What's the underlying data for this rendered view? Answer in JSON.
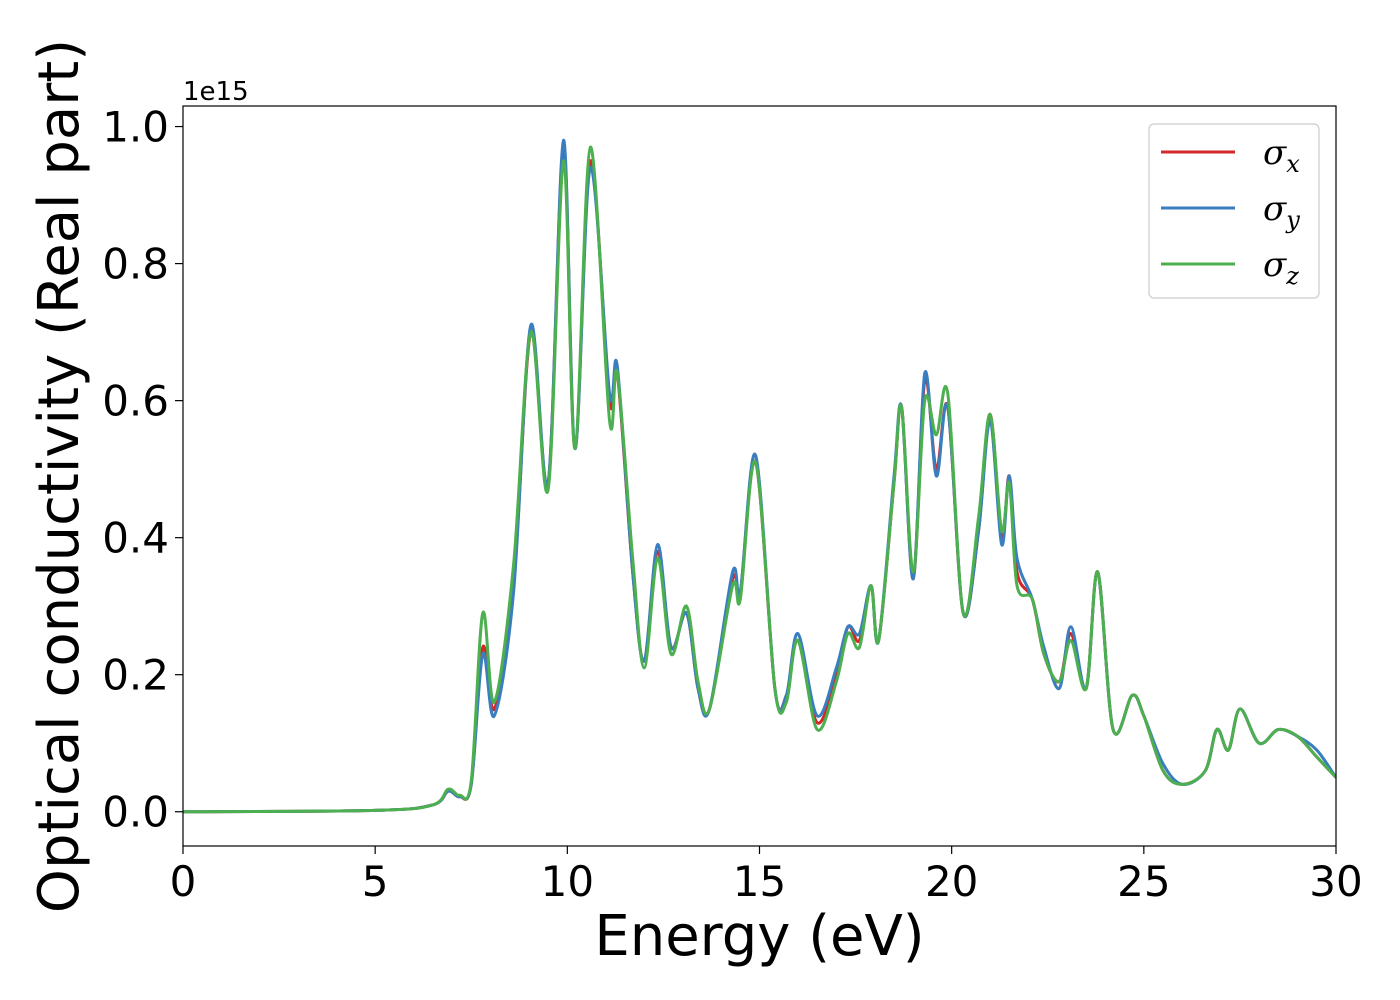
{
  "chart_data": {
    "type": "line",
    "title": "",
    "xlabel": "Energy (eV)",
    "ylabel": "Optical conductivity (Real part)",
    "y_offset_label": "1e15",
    "xlim": [
      0,
      30
    ],
    "ylim": [
      -0.05,
      1.03
    ],
    "xticks": [
      0,
      5,
      10,
      15,
      20,
      25,
      30
    ],
    "xtick_labels": [
      "0",
      "5",
      "10",
      "15",
      "20",
      "25",
      "30"
    ],
    "yticks": [
      0.0,
      0.2,
      0.4,
      0.6,
      0.8,
      1.0
    ],
    "ytick_labels": [
      "0.0",
      "0.2",
      "0.4",
      "0.6",
      "0.8",
      "1.0"
    ],
    "grid": false,
    "legend_position": "top-right",
    "series": [
      {
        "name": "σx",
        "legend_base": "σ",
        "legend_sub": "x",
        "color": "#d62728",
        "points": [
          [
            0,
            0
          ],
          [
            5,
            0.002
          ],
          [
            6.5,
            0.01
          ],
          [
            6.9,
            0.03
          ],
          [
            7.2,
            0.022
          ],
          [
            7.5,
            0.04
          ],
          [
            7.8,
            0.24
          ],
          [
            8.1,
            0.15
          ],
          [
            8.6,
            0.33
          ],
          [
            9.05,
            0.7
          ],
          [
            9.5,
            0.48
          ],
          [
            9.9,
            0.97
          ],
          [
            10.2,
            0.53
          ],
          [
            10.6,
            0.95
          ],
          [
            11.1,
            0.6
          ],
          [
            11.3,
            0.64
          ],
          [
            11.7,
            0.35
          ],
          [
            12.0,
            0.22
          ],
          [
            12.35,
            0.38
          ],
          [
            12.7,
            0.24
          ],
          [
            13.1,
            0.29
          ],
          [
            13.4,
            0.18
          ],
          [
            13.7,
            0.15
          ],
          [
            14.3,
            0.34
          ],
          [
            14.5,
            0.32
          ],
          [
            14.9,
            0.51
          ],
          [
            15.4,
            0.18
          ],
          [
            15.7,
            0.17
          ],
          [
            16.0,
            0.25
          ],
          [
            16.5,
            0.13
          ],
          [
            17.0,
            0.2
          ],
          [
            17.3,
            0.27
          ],
          [
            17.6,
            0.25
          ],
          [
            17.9,
            0.33
          ],
          [
            18.1,
            0.25
          ],
          [
            18.5,
            0.48
          ],
          [
            18.7,
            0.59
          ],
          [
            19.0,
            0.34
          ],
          [
            19.3,
            0.63
          ],
          [
            19.6,
            0.5
          ],
          [
            19.9,
            0.59
          ],
          [
            20.3,
            0.29
          ],
          [
            20.7,
            0.41
          ],
          [
            21.0,
            0.58
          ],
          [
            21.3,
            0.4
          ],
          [
            21.5,
            0.49
          ],
          [
            21.7,
            0.35
          ],
          [
            22.1,
            0.31
          ],
          [
            22.4,
            0.23
          ],
          [
            22.8,
            0.19
          ],
          [
            23.1,
            0.26
          ],
          [
            23.5,
            0.18
          ],
          [
            23.8,
            0.35
          ],
          [
            24.2,
            0.12
          ],
          [
            24.7,
            0.17
          ],
          [
            25.0,
            0.14
          ],
          [
            25.5,
            0.06
          ],
          [
            26.0,
            0.04
          ],
          [
            26.6,
            0.06
          ],
          [
            26.9,
            0.12
          ],
          [
            27.2,
            0.09
          ],
          [
            27.5,
            0.15
          ],
          [
            28.0,
            0.1
          ],
          [
            28.5,
            0.12
          ],
          [
            29.0,
            0.11
          ],
          [
            29.5,
            0.08
          ],
          [
            30.0,
            0.05
          ]
        ]
      },
      {
        "name": "σy",
        "legend_base": "σ",
        "legend_sub": "y",
        "color": "#3a7ebf",
        "points": [
          [
            0,
            0
          ],
          [
            5,
            0.002
          ],
          [
            6.5,
            0.01
          ],
          [
            6.9,
            0.03
          ],
          [
            7.2,
            0.022
          ],
          [
            7.5,
            0.04
          ],
          [
            7.8,
            0.23
          ],
          [
            8.1,
            0.14
          ],
          [
            8.6,
            0.32
          ],
          [
            9.05,
            0.71
          ],
          [
            9.5,
            0.48
          ],
          [
            9.9,
            0.98
          ],
          [
            10.2,
            0.53
          ],
          [
            10.6,
            0.94
          ],
          [
            11.1,
            0.61
          ],
          [
            11.3,
            0.65
          ],
          [
            11.7,
            0.35
          ],
          [
            12.0,
            0.22
          ],
          [
            12.35,
            0.39
          ],
          [
            12.7,
            0.24
          ],
          [
            13.1,
            0.29
          ],
          [
            13.4,
            0.18
          ],
          [
            13.7,
            0.15
          ],
          [
            14.3,
            0.35
          ],
          [
            14.5,
            0.32
          ],
          [
            14.9,
            0.52
          ],
          [
            15.4,
            0.18
          ],
          [
            15.7,
            0.17
          ],
          [
            16.0,
            0.26
          ],
          [
            16.5,
            0.14
          ],
          [
            17.0,
            0.21
          ],
          [
            17.3,
            0.27
          ],
          [
            17.6,
            0.26
          ],
          [
            17.9,
            0.33
          ],
          [
            18.1,
            0.25
          ],
          [
            18.5,
            0.49
          ],
          [
            18.7,
            0.59
          ],
          [
            19.0,
            0.34
          ],
          [
            19.3,
            0.64
          ],
          [
            19.6,
            0.49
          ],
          [
            19.9,
            0.59
          ],
          [
            20.3,
            0.29
          ],
          [
            20.7,
            0.41
          ],
          [
            21.0,
            0.57
          ],
          [
            21.3,
            0.39
          ],
          [
            21.5,
            0.49
          ],
          [
            21.7,
            0.37
          ],
          [
            22.1,
            0.31
          ],
          [
            22.4,
            0.24
          ],
          [
            22.8,
            0.18
          ],
          [
            23.1,
            0.27
          ],
          [
            23.5,
            0.18
          ],
          [
            23.8,
            0.35
          ],
          [
            24.2,
            0.12
          ],
          [
            24.7,
            0.17
          ],
          [
            25.0,
            0.14
          ],
          [
            25.5,
            0.07
          ],
          [
            26.0,
            0.04
          ],
          [
            26.6,
            0.06
          ],
          [
            26.9,
            0.12
          ],
          [
            27.2,
            0.09
          ],
          [
            27.5,
            0.15
          ],
          [
            28.0,
            0.1
          ],
          [
            28.5,
            0.12
          ],
          [
            29.0,
            0.11
          ],
          [
            29.5,
            0.09
          ],
          [
            30.0,
            0.05
          ]
        ]
      },
      {
        "name": "σz",
        "legend_base": "σ",
        "legend_sub": "z",
        "color": "#4caf50",
        "points": [
          [
            0,
            0
          ],
          [
            5,
            0.002
          ],
          [
            6.5,
            0.01
          ],
          [
            6.9,
            0.033
          ],
          [
            7.2,
            0.024
          ],
          [
            7.5,
            0.045
          ],
          [
            7.8,
            0.29
          ],
          [
            8.1,
            0.16
          ],
          [
            8.6,
            0.36
          ],
          [
            9.05,
            0.7
          ],
          [
            9.5,
            0.47
          ],
          [
            9.9,
            0.95
          ],
          [
            10.2,
            0.53
          ],
          [
            10.6,
            0.97
          ],
          [
            11.1,
            0.57
          ],
          [
            11.3,
            0.64
          ],
          [
            11.7,
            0.37
          ],
          [
            12.0,
            0.21
          ],
          [
            12.35,
            0.37
          ],
          [
            12.7,
            0.23
          ],
          [
            13.1,
            0.3
          ],
          [
            13.4,
            0.19
          ],
          [
            13.7,
            0.15
          ],
          [
            14.3,
            0.33
          ],
          [
            14.5,
            0.31
          ],
          [
            14.9,
            0.51
          ],
          [
            15.4,
            0.18
          ],
          [
            15.7,
            0.16
          ],
          [
            16.0,
            0.25
          ],
          [
            16.5,
            0.12
          ],
          [
            17.0,
            0.19
          ],
          [
            17.3,
            0.26
          ],
          [
            17.6,
            0.24
          ],
          [
            17.9,
            0.33
          ],
          [
            18.1,
            0.25
          ],
          [
            18.5,
            0.48
          ],
          [
            18.7,
            0.59
          ],
          [
            19.0,
            0.35
          ],
          [
            19.3,
            0.6
          ],
          [
            19.6,
            0.55
          ],
          [
            19.9,
            0.61
          ],
          [
            20.3,
            0.29
          ],
          [
            20.7,
            0.43
          ],
          [
            21.0,
            0.58
          ],
          [
            21.3,
            0.41
          ],
          [
            21.5,
            0.48
          ],
          [
            21.7,
            0.33
          ],
          [
            22.1,
            0.31
          ],
          [
            22.4,
            0.23
          ],
          [
            22.8,
            0.19
          ],
          [
            23.1,
            0.25
          ],
          [
            23.5,
            0.18
          ],
          [
            23.8,
            0.35
          ],
          [
            24.2,
            0.12
          ],
          [
            24.7,
            0.17
          ],
          [
            25.0,
            0.14
          ],
          [
            25.5,
            0.06
          ],
          [
            26.0,
            0.04
          ],
          [
            26.6,
            0.06
          ],
          [
            26.9,
            0.12
          ],
          [
            27.2,
            0.09
          ],
          [
            27.5,
            0.15
          ],
          [
            28.0,
            0.1
          ],
          [
            28.5,
            0.12
          ],
          [
            29.0,
            0.11
          ],
          [
            29.5,
            0.08
          ],
          [
            30.0,
            0.05
          ]
        ]
      }
    ]
  }
}
